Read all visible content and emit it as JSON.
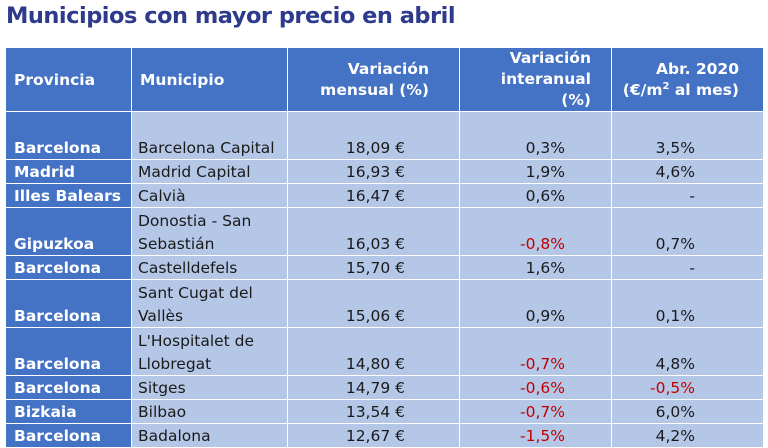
{
  "title": "Municipios con mayor precio en abril",
  "table": {
    "headers": {
      "provincia": "Provincia",
      "municipio": "Municipio",
      "mensual_line1": "Variación",
      "mensual_line2": "mensual (%)",
      "interanual_line1": "Variación",
      "interanual_line2": "interanual (%)",
      "abr_line1": "Abr. 2020",
      "abr_line2_pre": "(€/m",
      "abr_line2_sup": "2",
      "abr_line2_post": " al mes)"
    },
    "rows": [
      {
        "provincia": "Barcelona",
        "municipio": "Barcelona Capital",
        "mensual": "18,09 €",
        "interanual": "0,3%",
        "abr": "3,5%",
        "interanual_neg": false,
        "abr_neg": false
      },
      {
        "provincia": "Madrid",
        "municipio": "Madrid Capital",
        "mensual": "16,93 €",
        "interanual": "1,9%",
        "abr": "4,6%",
        "interanual_neg": false,
        "abr_neg": false
      },
      {
        "provincia": "Illes Balears",
        "municipio": "Calvià",
        "mensual": "16,47 €",
        "interanual": "0,6%",
        "abr": "-",
        "interanual_neg": false,
        "abr_neg": false
      },
      {
        "provincia": "Gipuzkoa",
        "municipio": "Donostia - San Sebastián",
        "mensual": "16,03 €",
        "interanual": "-0,8%",
        "abr": "0,7%",
        "interanual_neg": true,
        "abr_neg": false
      },
      {
        "provincia": "Barcelona",
        "municipio": "Castelldefels",
        "mensual": "15,70 €",
        "interanual": "1,6%",
        "abr": "-",
        "interanual_neg": false,
        "abr_neg": false
      },
      {
        "provincia": "Barcelona",
        "municipio": "Sant Cugat del Vallès",
        "mensual": "15,06 €",
        "interanual": "0,9%",
        "abr": "0,1%",
        "interanual_neg": false,
        "abr_neg": false
      },
      {
        "provincia": "Barcelona",
        "municipio": "L'Hospitalet de Llobregat",
        "mensual": "14,80 €",
        "interanual": "-0,7%",
        "abr": "4,8%",
        "interanual_neg": true,
        "abr_neg": false
      },
      {
        "provincia": "Barcelona",
        "municipio": "Sitges",
        "mensual": "14,79 €",
        "interanual": "-0,6%",
        "abr": "-0,5%",
        "interanual_neg": true,
        "abr_neg": true
      },
      {
        "provincia": "Bizkaia",
        "municipio": "Bilbao",
        "mensual": "13,54 €",
        "interanual": "-0,7%",
        "abr": "6,0%",
        "interanual_neg": true,
        "abr_neg": false
      },
      {
        "provincia": "Barcelona",
        "municipio": "Badalona",
        "mensual": "12,67 €",
        "interanual": "-1,5%",
        "abr": "4,2%",
        "interanual_neg": true,
        "abr_neg": false
      }
    ]
  },
  "colors": {
    "title": "#2e3a8c",
    "header_bg": "#4472c4",
    "cell_bg": "#b4c7e7",
    "negative": "#c00000"
  }
}
